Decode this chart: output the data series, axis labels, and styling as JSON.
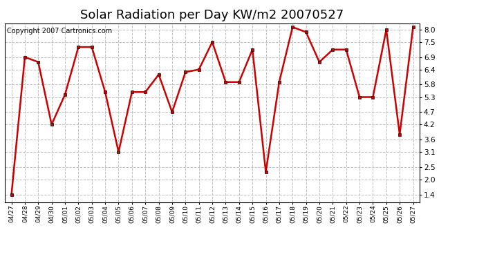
{
  "title": "Solar Radiation per Day KW/m2 20070527",
  "copyright_text": "Copyright 2007 Cartronics.com",
  "dates": [
    "04/27",
    "04/28",
    "04/29",
    "04/30",
    "05/01",
    "05/02",
    "05/03",
    "05/04",
    "05/05",
    "05/06",
    "05/07",
    "05/08",
    "05/09",
    "05/10",
    "05/11",
    "05/12",
    "05/13",
    "05/14",
    "05/15",
    "05/16",
    "05/17",
    "05/18",
    "05/19",
    "05/20",
    "05/21",
    "05/22",
    "05/23",
    "05/24",
    "05/25",
    "05/26",
    "05/27"
  ],
  "values": [
    1.4,
    6.9,
    6.7,
    4.2,
    5.4,
    7.3,
    7.3,
    5.5,
    3.1,
    5.5,
    5.5,
    6.2,
    4.7,
    6.3,
    6.4,
    7.5,
    5.9,
    5.9,
    7.2,
    2.3,
    5.9,
    8.1,
    7.9,
    6.7,
    7.2,
    7.2,
    5.3,
    5.3,
    8.0,
    3.8,
    8.1
  ],
  "line_color": "#cc0000",
  "marker_color": "#cc0000",
  "background_color": "#ffffff",
  "grid_color": "#c0c0c0",
  "yticks": [
    1.4,
    2.0,
    2.5,
    3.1,
    3.6,
    4.2,
    4.7,
    5.3,
    5.8,
    6.4,
    6.9,
    7.5,
    8.0
  ],
  "ylim": [
    1.1,
    8.25
  ],
  "title_fontsize": 13,
  "copyright_fontsize": 7
}
